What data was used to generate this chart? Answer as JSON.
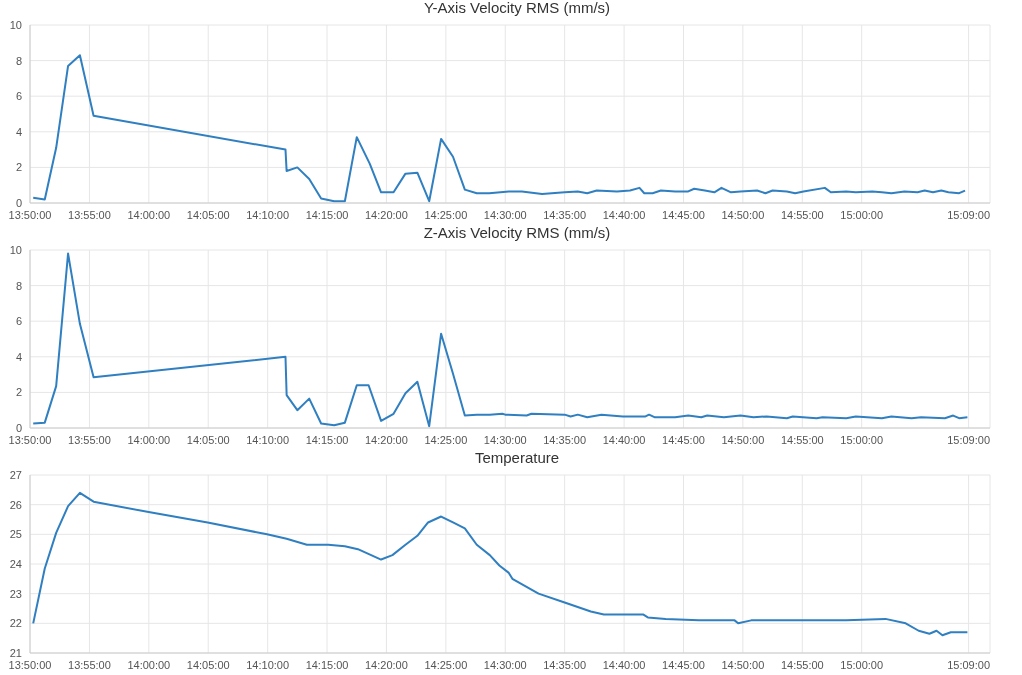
{
  "chart_data": [
    {
      "type": "line",
      "title": "Y-Axis Velocity RMS (mm/s)",
      "color": "#2f7fc1",
      "grid": true,
      "marker": "none",
      "line_style": "solid",
      "xlim": [
        13.8333,
        15.18
      ],
      "ylim": [
        0,
        10
      ],
      "yticks": [
        0,
        2,
        4,
        6,
        8,
        10
      ],
      "xticks": [
        {
          "value": 13.8333,
          "label": "13:50:00"
        },
        {
          "value": 13.9167,
          "label": "13:55:00"
        },
        {
          "value": 14,
          "label": "14:00:00"
        },
        {
          "value": 14.0833,
          "label": "14:05:00"
        },
        {
          "value": 14.1667,
          "label": "14:10:00"
        },
        {
          "value": 14.25,
          "label": "14:15:00"
        },
        {
          "value": 14.3333,
          "label": "14:20:00"
        },
        {
          "value": 14.4167,
          "label": "14:25:00"
        },
        {
          "value": 14.5,
          "label": "14:30:00"
        },
        {
          "value": 14.5833,
          "label": "14:35:00"
        },
        {
          "value": 14.6667,
          "label": "14:40:00"
        },
        {
          "value": 14.75,
          "label": "14:45:00"
        },
        {
          "value": 14.8333,
          "label": "14:50:00"
        },
        {
          "value": 14.9167,
          "label": "14:55:00"
        },
        {
          "value": 15,
          "label": "15:00:00"
        },
        {
          "value": 15.15,
          "label": "15:09:00"
        }
      ],
      "x": [
        13.8378,
        13.854,
        13.87,
        13.8867,
        13.9033,
        13.9225,
        14.1917,
        14.1933,
        14.2083,
        14.225,
        14.2417,
        14.26,
        14.275,
        14.2917,
        14.31,
        14.3258,
        14.3433,
        14.36,
        14.3767,
        14.3933,
        14.41,
        14.4267,
        14.4433,
        14.46,
        14.4775,
        14.505,
        14.5233,
        14.5517,
        14.5833,
        14.6017,
        14.615,
        14.6283,
        14.6567,
        14.675,
        14.6883,
        14.695,
        14.7067,
        14.7183,
        14.7383,
        14.7567,
        14.765,
        14.78,
        14.7933,
        14.8033,
        14.8167,
        14.83,
        14.8533,
        14.865,
        14.875,
        14.895,
        14.9067,
        14.9183,
        14.9483,
        14.9567,
        14.9783,
        14.9917,
        15.015,
        15.0283,
        15.0417,
        15.06,
        15.0783,
        15.0883,
        15.1,
        15.1117,
        15.1217,
        15.1367,
        15.145
      ],
      "values": [
        0.3,
        0.2,
        3.1,
        7.7,
        8.3,
        4.9,
        3.0,
        1.8,
        2.0,
        1.35,
        0.25,
        0.1,
        0.1,
        3.7,
        2.2,
        0.6,
        0.6,
        1.65,
        1.7,
        0.1,
        3.6,
        2.6,
        0.75,
        0.55,
        0.55,
        0.65,
        0.65,
        0.5,
        0.6,
        0.65,
        0.55,
        0.7,
        0.65,
        0.7,
        0.85,
        0.55,
        0.55,
        0.7,
        0.65,
        0.65,
        0.8,
        0.7,
        0.6,
        0.85,
        0.6,
        0.65,
        0.7,
        0.55,
        0.7,
        0.65,
        0.55,
        0.65,
        0.85,
        0.6,
        0.65,
        0.6,
        0.65,
        0.6,
        0.55,
        0.65,
        0.6,
        0.7,
        0.6,
        0.7,
        0.6,
        0.55,
        0.7
      ]
    },
    {
      "type": "line",
      "title": "Z-Axis Velocity RMS (mm/s)",
      "color": "#2f7fc1",
      "grid": true,
      "marker": "none",
      "line_style": "solid",
      "xlim": [
        13.8333,
        15.18
      ],
      "ylim": [
        0,
        10
      ],
      "yticks": [
        0,
        2,
        4,
        6,
        8,
        10
      ],
      "xticks": [
        {
          "value": 13.8333,
          "label": "13:50:00"
        },
        {
          "value": 13.9167,
          "label": "13:55:00"
        },
        {
          "value": 14,
          "label": "14:00:00"
        },
        {
          "value": 14.0833,
          "label": "14:05:00"
        },
        {
          "value": 14.1667,
          "label": "14:10:00"
        },
        {
          "value": 14.25,
          "label": "14:15:00"
        },
        {
          "value": 14.3333,
          "label": "14:20:00"
        },
        {
          "value": 14.4167,
          "label": "14:25:00"
        },
        {
          "value": 14.5,
          "label": "14:30:00"
        },
        {
          "value": 14.5833,
          "label": "14:35:00"
        },
        {
          "value": 14.6667,
          "label": "14:40:00"
        },
        {
          "value": 14.75,
          "label": "14:45:00"
        },
        {
          "value": 14.8333,
          "label": "14:50:00"
        },
        {
          "value": 14.9167,
          "label": "14:55:00"
        },
        {
          "value": 15,
          "label": "15:00:00"
        },
        {
          "value": 15.15,
          "label": "15:09:00"
        }
      ],
      "x": [
        13.8378,
        13.854,
        13.87,
        13.8867,
        13.9033,
        13.9225,
        14.1917,
        14.1933,
        14.2083,
        14.225,
        14.2417,
        14.26,
        14.275,
        14.2917,
        14.3083,
        14.3258,
        14.3433,
        14.36,
        14.3767,
        14.3933,
        14.41,
        14.4267,
        14.4433,
        14.46,
        14.4783,
        14.4958,
        14.5,
        14.53,
        14.5367,
        14.5833,
        14.5917,
        14.6017,
        14.615,
        14.635,
        14.665,
        14.6967,
        14.7017,
        14.71,
        14.7383,
        14.7567,
        14.775,
        14.7833,
        14.8067,
        14.83,
        14.8483,
        14.8667,
        14.895,
        14.9033,
        14.9367,
        14.945,
        14.9783,
        14.9917,
        15.0283,
        15.0417,
        15.07,
        15.0833,
        15.1167,
        15.1283,
        15.1367,
        15.1483
      ],
      "values": [
        0.25,
        0.3,
        2.35,
        9.8,
        5.85,
        2.85,
        4.0,
        1.85,
        1.0,
        1.65,
        0.25,
        0.15,
        0.3,
        2.4,
        2.4,
        0.4,
        0.8,
        1.95,
        2.6,
        0.1,
        5.3,
        3.05,
        0.7,
        0.75,
        0.75,
        0.8,
        0.75,
        0.7,
        0.8,
        0.75,
        0.65,
        0.75,
        0.6,
        0.75,
        0.65,
        0.65,
        0.75,
        0.6,
        0.6,
        0.7,
        0.6,
        0.7,
        0.6,
        0.7,
        0.6,
        0.65,
        0.55,
        0.65,
        0.55,
        0.6,
        0.55,
        0.65,
        0.55,
        0.65,
        0.55,
        0.6,
        0.55,
        0.7,
        0.55,
        0.6
      ]
    },
    {
      "type": "line",
      "title": "Temperature",
      "color": "#2f7fc1",
      "grid": true,
      "marker": "none",
      "line_style": "solid",
      "xlim": [
        13.8333,
        15.18
      ],
      "ylim": [
        21,
        27
      ],
      "yticks": [
        21,
        22,
        23,
        24,
        25,
        26,
        27
      ],
      "xticks": [
        {
          "value": 13.8333,
          "label": "13:50:00"
        },
        {
          "value": 13.9167,
          "label": "13:55:00"
        },
        {
          "value": 14,
          "label": "14:00:00"
        },
        {
          "value": 14.0833,
          "label": "14:05:00"
        },
        {
          "value": 14.1667,
          "label": "14:10:00"
        },
        {
          "value": 14.25,
          "label": "14:15:00"
        },
        {
          "value": 14.3333,
          "label": "14:20:00"
        },
        {
          "value": 14.4167,
          "label": "14:25:00"
        },
        {
          "value": 14.5,
          "label": "14:30:00"
        },
        {
          "value": 14.5833,
          "label": "14:35:00"
        },
        {
          "value": 14.6667,
          "label": "14:40:00"
        },
        {
          "value": 14.75,
          "label": "14:45:00"
        },
        {
          "value": 14.8333,
          "label": "14:50:00"
        },
        {
          "value": 14.9167,
          "label": "14:55:00"
        },
        {
          "value": 15,
          "label": "15:00:00"
        },
        {
          "value": 15.15,
          "label": "15:09:00"
        }
      ],
      "x": [
        13.8378,
        13.854,
        13.87,
        13.8867,
        13.9033,
        13.9225,
        13.9997,
        14.0825,
        14.1658,
        14.1933,
        14.2217,
        14.2517,
        14.275,
        14.2933,
        14.3258,
        14.3417,
        14.36,
        14.3767,
        14.3917,
        14.41,
        14.4267,
        14.4433,
        14.46,
        14.4783,
        14.4917,
        14.505,
        14.51,
        14.5467,
        14.5833,
        14.62,
        14.6383,
        14.6933,
        14.7,
        14.725,
        14.7717,
        14.8217,
        14.8267,
        14.845,
        14.9783,
        15.0333,
        15.0617,
        15.08,
        15.095,
        15.105,
        15.1133,
        15.125,
        15.1483
      ],
      "values": [
        22.0,
        23.85,
        25.05,
        25.95,
        26.4,
        26.1,
        25.75,
        25.4,
        25.0,
        24.85,
        24.65,
        24.65,
        24.6,
        24.5,
        24.15,
        24.3,
        24.65,
        24.95,
        25.4,
        25.6,
        25.4,
        25.2,
        24.65,
        24.3,
        23.95,
        23.7,
        23.5,
        23.0,
        22.7,
        22.4,
        22.3,
        22.3,
        22.2,
        22.15,
        22.1,
        22.1,
        22.0,
        22.1,
        22.1,
        22.15,
        22.0,
        21.75,
        21.65,
        21.75,
        21.6,
        21.7,
        21.7
      ]
    }
  ]
}
